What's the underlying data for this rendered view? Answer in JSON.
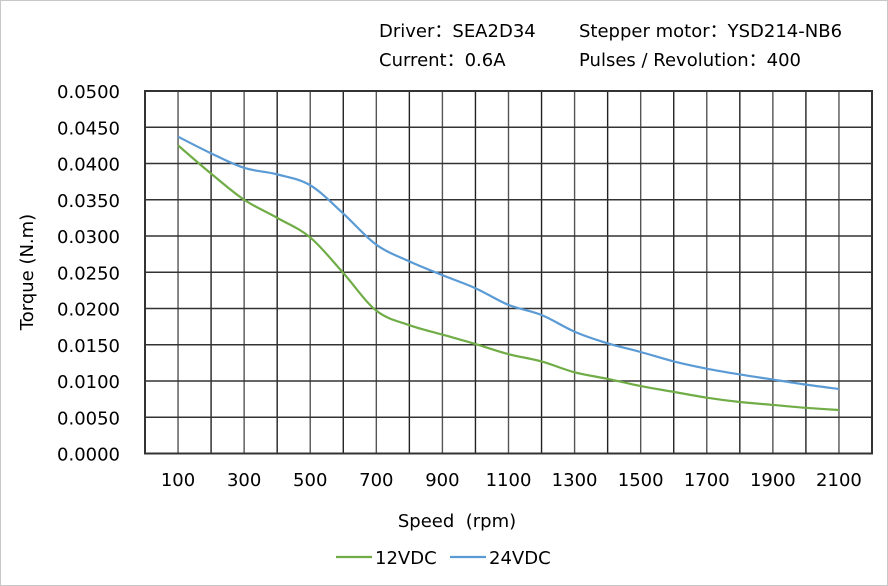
{
  "header": {
    "driver": "Driver：SEA2D34",
    "motor": "Stepper motor：YSD214-NB6",
    "current": "Current：0.6A",
    "pulses": "Pulses / Revolution：400"
  },
  "chart_data": {
    "type": "line",
    "title": "",
    "xlabel": "Speed  (rpm)",
    "ylabel": "Torque (N.m)",
    "xlim": [
      0,
      2200
    ],
    "ylim": [
      0,
      0.05
    ],
    "grid": true,
    "legend_position": "bottom",
    "x_ticks": [
      "100",
      "300",
      "500",
      "700",
      "900",
      "1100",
      "1300",
      "1500",
      "1700",
      "1900",
      "2100"
    ],
    "y_ticks": [
      "0.0000",
      "0.0050",
      "0.0100",
      "0.0150",
      "0.0200",
      "0.0250",
      "0.0300",
      "0.0350",
      "0.0400",
      "0.0450",
      "0.0500"
    ],
    "x": [
      100,
      200,
      300,
      400,
      500,
      600,
      700,
      800,
      900,
      1000,
      1100,
      1200,
      1300,
      1400,
      1500,
      1600,
      1700,
      1800,
      1900,
      2000,
      2100
    ],
    "series": [
      {
        "name": "12VDC",
        "color": "#70AD47",
        "values": [
          0.0425,
          0.0386,
          0.035,
          0.0325,
          0.0298,
          0.0249,
          0.0197,
          0.0177,
          0.0164,
          0.0151,
          0.0137,
          0.0127,
          0.0112,
          0.0103,
          0.0093,
          0.0085,
          0.0077,
          0.0071,
          0.0067,
          0.0063,
          0.006
        ]
      },
      {
        "name": "24VDC",
        "color": "#5B9BD5",
        "values": [
          0.0437,
          0.0414,
          0.0394,
          0.0385,
          0.037,
          0.0331,
          0.0288,
          0.0265,
          0.0246,
          0.0228,
          0.0205,
          0.0191,
          0.0168,
          0.0152,
          0.014,
          0.0127,
          0.0117,
          0.0109,
          0.0102,
          0.0095,
          0.0089
        ]
      }
    ]
  }
}
